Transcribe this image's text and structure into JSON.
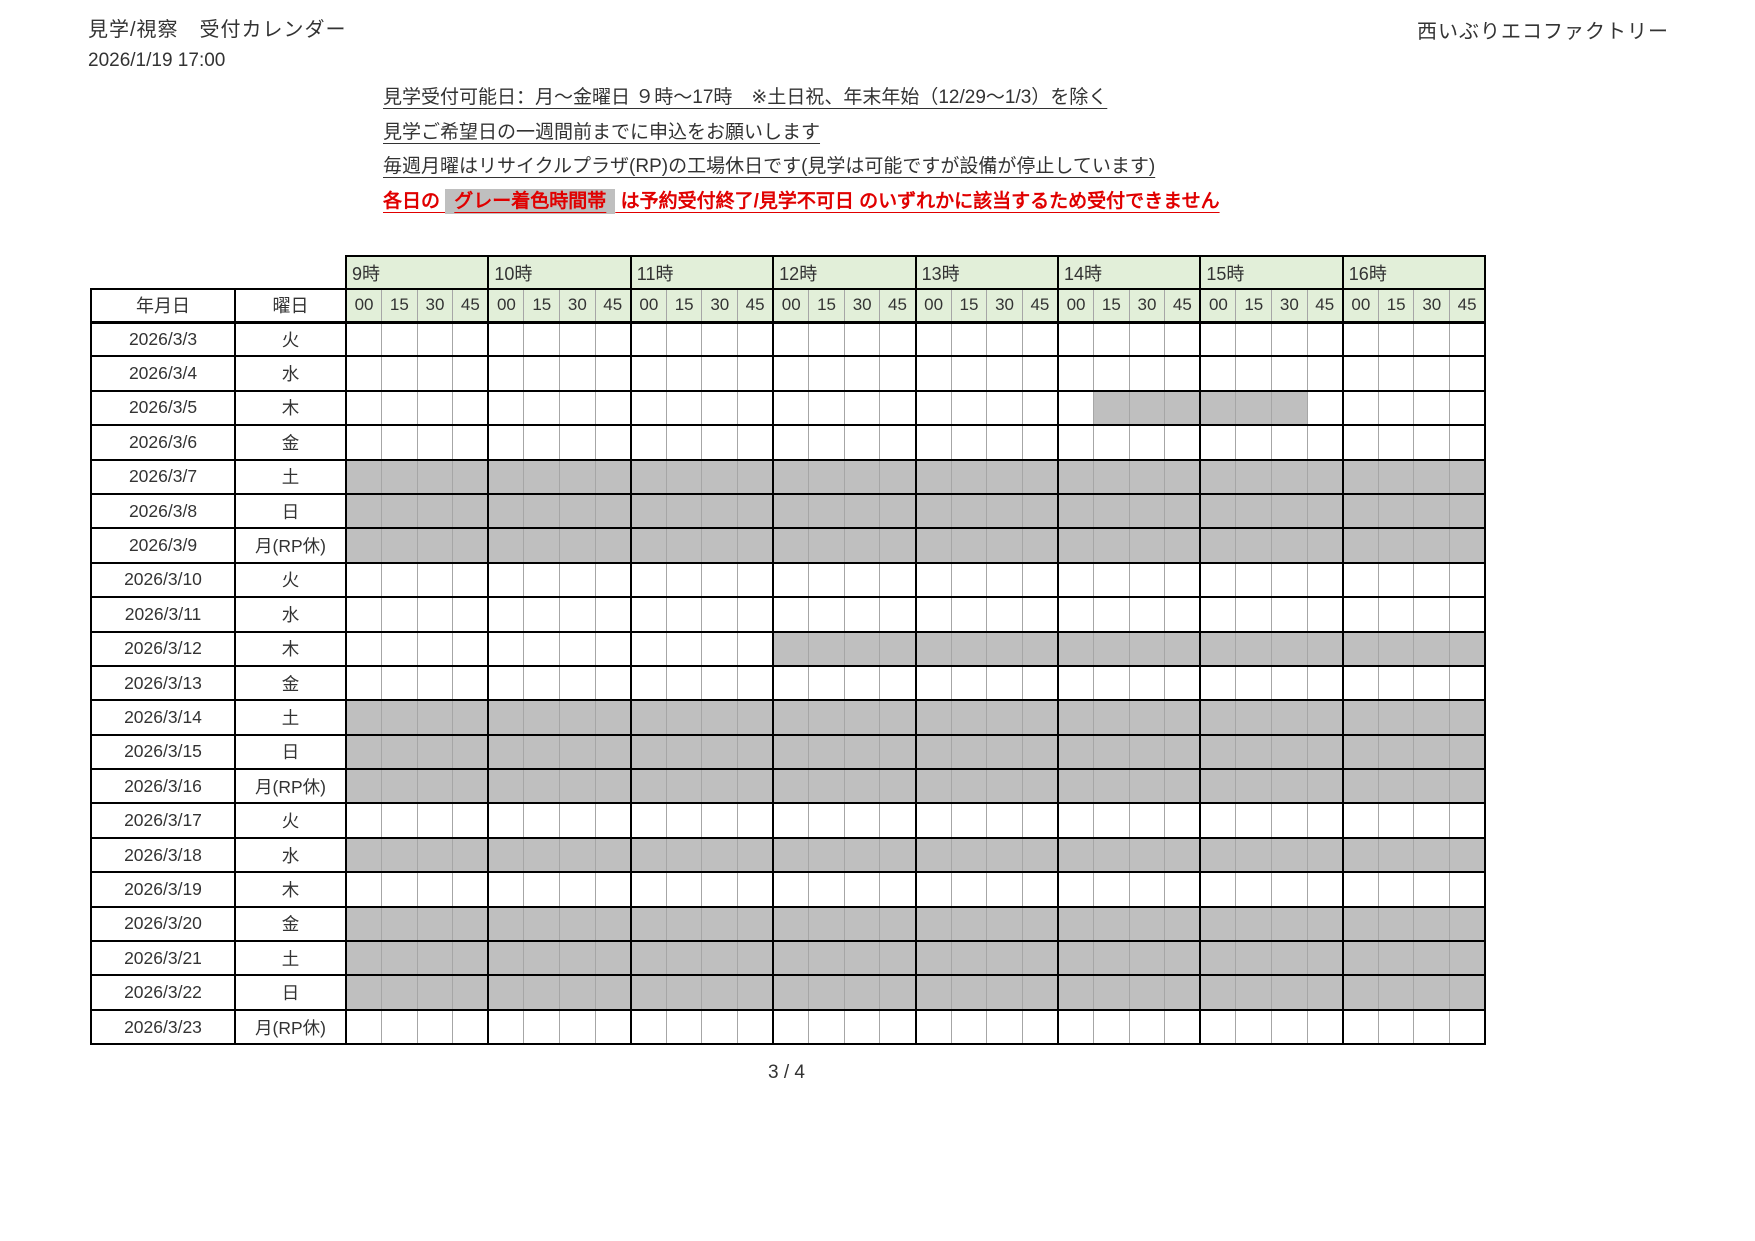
{
  "header": {
    "title": "見学/視察　受付カレンダー",
    "timestamp": "2026/1/19  17:00",
    "company": "西いぶりエコファクトリー"
  },
  "notes": {
    "line1": "見学受付可能日：月～金曜日 ９時～17時　※土日祝、年末年始（12/29～1/3）を除く",
    "line2": "見学ご希望日の一週間前までに申込をお願いします",
    "line3": "毎週月曜はリサイクルプラザ(RP)の工場休日です(見学は可能ですが設備が停止しています)",
    "line4_prefix": "各日の ",
    "line4_highlight": "グレー着色時間帯",
    "line4_suffix": " は予約受付終了/見学不可日 のいずれかに該当するため受付できません"
  },
  "calendar": {
    "date_header": "年月日",
    "day_header": "曜日",
    "hours": [
      "9時",
      "10時",
      "11時",
      "12時",
      "13時",
      "14時",
      "15時",
      "16時"
    ],
    "minutes": [
      "00",
      "15",
      "30",
      "45"
    ],
    "rows": [
      {
        "date": "2026/3/3",
        "day": "火",
        "gray": []
      },
      {
        "date": "2026/3/4",
        "day": "水",
        "gray": []
      },
      {
        "date": "2026/3/5",
        "day": "木",
        "gray": [
          [
            21,
            26
          ]
        ]
      },
      {
        "date": "2026/3/6",
        "day": "金",
        "gray": []
      },
      {
        "date": "2026/3/7",
        "day": "土",
        "gray": [
          [
            0,
            31
          ]
        ]
      },
      {
        "date": "2026/3/8",
        "day": "日",
        "gray": [
          [
            0,
            31
          ]
        ]
      },
      {
        "date": "2026/3/9",
        "day": "月(RP休)",
        "gray": [
          [
            0,
            31
          ]
        ]
      },
      {
        "date": "2026/3/10",
        "day": "火",
        "gray": []
      },
      {
        "date": "2026/3/11",
        "day": "水",
        "gray": []
      },
      {
        "date": "2026/3/12",
        "day": "木",
        "gray": [
          [
            12,
            31
          ]
        ]
      },
      {
        "date": "2026/3/13",
        "day": "金",
        "gray": []
      },
      {
        "date": "2026/3/14",
        "day": "土",
        "gray": [
          [
            0,
            31
          ]
        ]
      },
      {
        "date": "2026/3/15",
        "day": "日",
        "gray": [
          [
            0,
            31
          ]
        ]
      },
      {
        "date": "2026/3/16",
        "day": "月(RP休)",
        "gray": [
          [
            0,
            31
          ]
        ]
      },
      {
        "date": "2026/3/17",
        "day": "火",
        "gray": []
      },
      {
        "date": "2026/3/18",
        "day": "水",
        "gray": [
          [
            0,
            31
          ]
        ]
      },
      {
        "date": "2026/3/19",
        "day": "木",
        "gray": []
      },
      {
        "date": "2026/3/20",
        "day": "金",
        "gray": [
          [
            0,
            31
          ]
        ]
      },
      {
        "date": "2026/3/21",
        "day": "土",
        "gray": [
          [
            0,
            31
          ]
        ]
      },
      {
        "date": "2026/3/22",
        "day": "日",
        "gray": [
          [
            0,
            31
          ]
        ]
      },
      {
        "date": "2026/3/23",
        "day": "月(RP休)",
        "gray": []
      }
    ]
  },
  "colors": {
    "header_green": "#e2efd9",
    "unavailable_gray": "#bfbfbf",
    "warning_red": "#e00000"
  },
  "footer": {
    "page": "3 / 4"
  }
}
